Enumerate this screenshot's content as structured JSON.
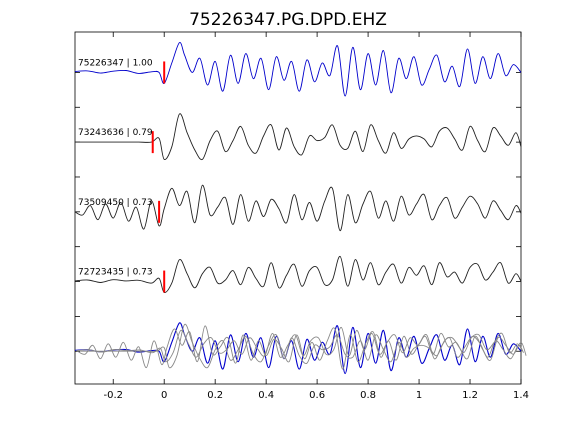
{
  "chart_data": {
    "type": "line",
    "title": "75226347.PG.DPD.EHZ",
    "xlabel": "",
    "ylabel": "",
    "xlim": [
      -0.35,
      1.4
    ],
    "x_ticks": [
      -0.2,
      0,
      0.2,
      0.4,
      0.6,
      0.8,
      1,
      1.2,
      1.4
    ],
    "x_tick_labels": [
      "-0.2",
      "0",
      "0.2",
      "0.4",
      "0.6",
      "0.8",
      "1",
      "1.2",
      "1.4"
    ],
    "grid": false,
    "colors": {
      "primary_trace": "#0000cc",
      "trace": "#222222",
      "overlay_trace": "#888888",
      "pick_marker": "#ff0000",
      "axes": "#000000"
    },
    "traces": [
      {
        "label": "75226347 | 1.00",
        "color": "primary",
        "pick_time": 0.0,
        "phase": 0.0,
        "noise_amp": 0.03,
        "x": [
          -0.35,
          -0.3,
          -0.25,
          -0.2,
          -0.15,
          -0.1,
          -0.05,
          -0.02,
          0.0,
          0.03,
          0.06,
          0.08,
          0.11,
          0.14,
          0.17,
          0.2,
          0.23,
          0.26,
          0.29,
          0.32,
          0.35,
          0.38,
          0.41,
          0.44,
          0.47,
          0.5,
          0.53,
          0.56,
          0.59,
          0.62,
          0.65,
          0.68,
          0.71,
          0.74,
          0.77,
          0.8,
          0.83,
          0.86,
          0.89,
          0.92,
          0.95,
          0.98,
          1.01,
          1.04,
          1.07,
          1.1,
          1.13,
          1.16,
          1.19,
          1.22,
          1.25,
          1.28,
          1.31,
          1.34,
          1.37,
          1.4
        ],
        "y": [
          0.03,
          0.05,
          -0.02,
          0.04,
          0.06,
          -0.03,
          0.02,
          0.0,
          -0.35,
          0.3,
          0.95,
          0.55,
          0.0,
          0.45,
          -0.4,
          0.35,
          -0.6,
          0.55,
          -0.35,
          0.6,
          -0.2,
          0.45,
          -0.55,
          0.5,
          -0.25,
          0.35,
          -0.6,
          0.4,
          -0.3,
          0.3,
          -0.1,
          0.85,
          -0.75,
          0.8,
          -0.55,
          0.6,
          -0.4,
          0.7,
          -0.65,
          0.45,
          -0.2,
          0.5,
          -0.4,
          0.1,
          0.55,
          -0.3,
          0.2,
          -0.45,
          0.75,
          -0.35,
          0.5,
          -0.2,
          0.6,
          -0.1,
          0.25,
          0.0
        ]
      },
      {
        "label": "73243636 | 0.79",
        "color": "dark",
        "pick_time": -0.045,
        "phase": 0.02,
        "noise_amp": 0.0,
        "x": [
          -0.35,
          -0.3,
          -0.25,
          -0.2,
          -0.15,
          -0.1,
          -0.05,
          -0.02,
          0.0,
          0.03,
          0.06,
          0.09,
          0.12,
          0.15,
          0.18,
          0.21,
          0.24,
          0.27,
          0.3,
          0.33,
          0.36,
          0.39,
          0.42,
          0.45,
          0.48,
          0.51,
          0.54,
          0.57,
          0.6,
          0.63,
          0.66,
          0.69,
          0.72,
          0.75,
          0.78,
          0.81,
          0.84,
          0.87,
          0.9,
          0.93,
          0.96,
          0.99,
          1.02,
          1.05,
          1.08,
          1.11,
          1.14,
          1.17,
          1.2,
          1.23,
          1.26,
          1.29,
          1.32,
          1.35,
          1.38,
          1.4
        ],
        "y": [
          0.0,
          0.0,
          0.0,
          0.0,
          0.0,
          0.0,
          0.0,
          0.12,
          -0.55,
          -0.15,
          0.9,
          0.3,
          -0.25,
          -0.55,
          0.05,
          0.35,
          -0.3,
          0.05,
          0.5,
          -0.1,
          -0.35,
          0.2,
          0.55,
          -0.25,
          0.45,
          -0.15,
          -0.4,
          0.2,
          0.05,
          0.15,
          0.55,
          -0.1,
          -0.2,
          0.35,
          -0.3,
          0.55,
          0.05,
          -0.35,
          0.3,
          -0.2,
          0.1,
          0.2,
          0.1,
          -0.15,
          0.35,
          0.45,
          0.1,
          -0.25,
          0.5,
          0.05,
          -0.3,
          0.45,
          0.2,
          -0.1,
          0.3,
          -0.15
        ]
      },
      {
        "label": "73509450 | 0.73",
        "color": "dark",
        "pick_time": -0.02,
        "phase": 0.01,
        "noise_amp": 0.0,
        "x": [
          -0.35,
          -0.32,
          -0.29,
          -0.26,
          -0.23,
          -0.2,
          -0.17,
          -0.14,
          -0.11,
          -0.08,
          -0.05,
          -0.02,
          0.0,
          0.03,
          0.06,
          0.09,
          0.12,
          0.15,
          0.18,
          0.21,
          0.24,
          0.27,
          0.3,
          0.33,
          0.36,
          0.39,
          0.42,
          0.45,
          0.48,
          0.51,
          0.54,
          0.57,
          0.6,
          0.63,
          0.66,
          0.69,
          0.72,
          0.75,
          0.78,
          0.81,
          0.84,
          0.87,
          0.9,
          0.93,
          0.96,
          0.99,
          1.02,
          1.05,
          1.08,
          1.11,
          1.14,
          1.17,
          1.2,
          1.23,
          1.26,
          1.29,
          1.32,
          1.35,
          1.38,
          1.4
        ],
        "y": [
          0.0,
          -0.1,
          0.2,
          -0.25,
          0.25,
          -0.2,
          0.3,
          -0.3,
          0.15,
          -0.55,
          0.35,
          -0.45,
          0.1,
          0.75,
          0.2,
          0.65,
          -0.35,
          0.85,
          -0.1,
          0.15,
          0.45,
          -0.4,
          0.55,
          -0.3,
          0.35,
          -0.15,
          0.4,
          0.1,
          -0.35,
          0.55,
          -0.25,
          0.3,
          -0.3,
          0.35,
          0.75,
          -0.6,
          0.55,
          -0.35,
          0.25,
          0.65,
          -0.2,
          0.35,
          -0.3,
          0.5,
          -0.1,
          0.25,
          0.55,
          -0.25,
          0.2,
          0.45,
          -0.2,
          0.15,
          0.5,
          0.25,
          -0.2,
          0.35,
          0.05,
          -0.25,
          0.2,
          -0.05
        ]
      },
      {
        "label": "72723435 | 0.73",
        "color": "dark",
        "pick_time": 0.0,
        "phase": 0.005,
        "noise_amp": 0.02,
        "x": [
          -0.35,
          -0.3,
          -0.25,
          -0.2,
          -0.15,
          -0.1,
          -0.05,
          -0.02,
          0.0,
          0.03,
          0.06,
          0.09,
          0.12,
          0.15,
          0.18,
          0.21,
          0.24,
          0.27,
          0.3,
          0.33,
          0.36,
          0.39,
          0.42,
          0.45,
          0.48,
          0.51,
          0.54,
          0.57,
          0.6,
          0.63,
          0.66,
          0.69,
          0.72,
          0.75,
          0.78,
          0.81,
          0.84,
          0.87,
          0.9,
          0.93,
          0.96,
          0.99,
          1.02,
          1.05,
          1.08,
          1.11,
          1.14,
          1.17,
          1.2,
          1.23,
          1.26,
          1.29,
          1.32,
          1.35,
          1.38,
          1.4
        ],
        "y": [
          0.02,
          0.05,
          -0.03,
          0.06,
          0.02,
          0.04,
          -0.05,
          0.1,
          -0.35,
          -0.05,
          0.7,
          0.25,
          -0.2,
          0.25,
          0.45,
          -0.05,
          0.05,
          0.35,
          -0.1,
          0.45,
          0.1,
          -0.15,
          0.6,
          -0.2,
          0.2,
          0.55,
          -0.15,
          0.35,
          0.45,
          -0.1,
          0.05,
          0.8,
          -0.15,
          0.7,
          0.05,
          0.6,
          -0.1,
          0.3,
          0.55,
          -0.05,
          0.45,
          0.2,
          0.5,
          -0.1,
          0.6,
          0.15,
          0.3,
          -0.05,
          0.45,
          0.55,
          0.05,
          0.3,
          0.6,
          -0.05,
          0.25,
          0.0
        ]
      }
    ]
  }
}
